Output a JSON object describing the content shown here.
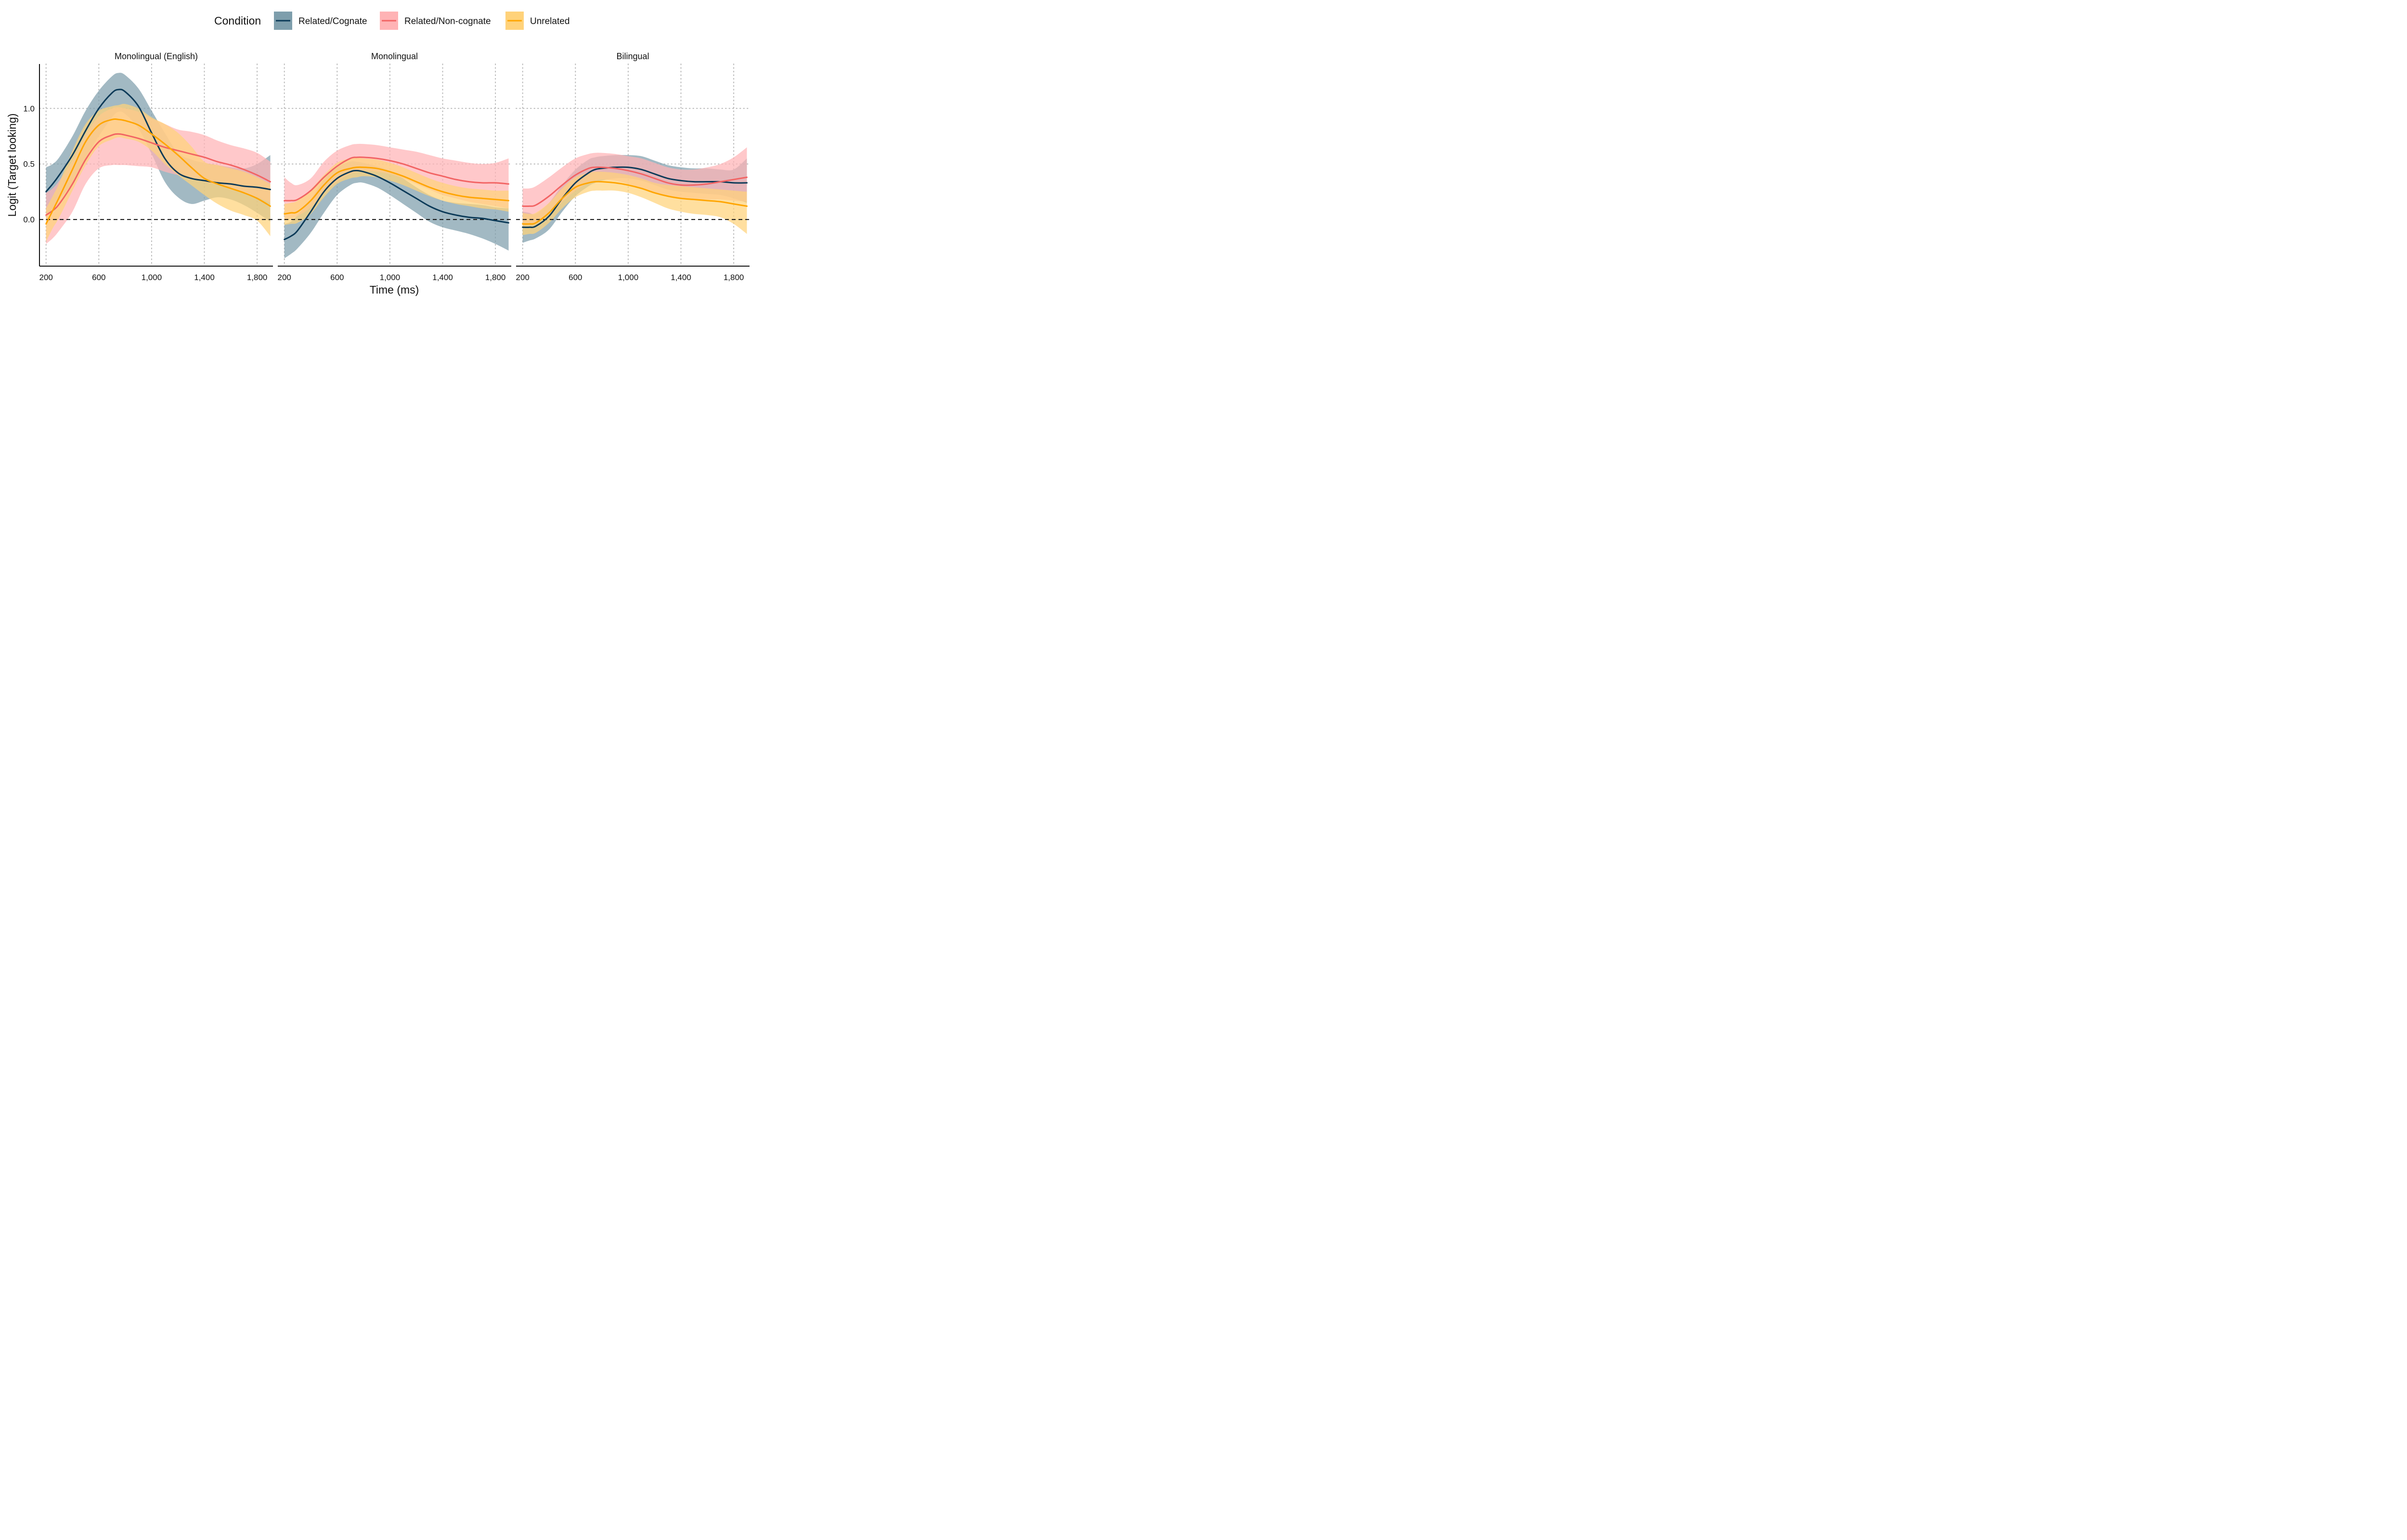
{
  "chart_data": {
    "type": "line",
    "xlabel": "Time (ms)",
    "ylabel": "Logit (Target looking)",
    "xlim": [
      150,
      1920
    ],
    "ylim": [
      -0.42,
      1.4
    ],
    "x_ticks": [
      200,
      600,
      1000,
      1400,
      1800
    ],
    "x_tick_labels": [
      "200",
      "600",
      "1,000",
      "1,400",
      "1,800"
    ],
    "y_ticks": [
      0,
      0.5,
      1
    ],
    "y_tick_labels": [
      "0.0",
      "0.5",
      "1.0"
    ],
    "grid": "dotted at ticks",
    "reference_line": {
      "y": 0,
      "style": "dashed"
    },
    "legend": {
      "title": "Condition",
      "position": "top",
      "entries": [
        {
          "name": "Related/Cognate",
          "line_color": "#0b3a58",
          "band_color": "#7e9eac"
        },
        {
          "name": "Related/Non-cognate",
          "line_color": "#f26464",
          "band_color": "#ffb3b5"
        },
        {
          "name": "Unrelated",
          "line_color": "#ffa500",
          "band_color": "#ffd27a"
        }
      ]
    },
    "x": [
      200,
      250,
      300,
      400,
      500,
      600,
      700,
      750,
      800,
      900,
      1000,
      1100,
      1200,
      1300,
      1400,
      1500,
      1600,
      1700,
      1800,
      1900
    ],
    "panels": [
      {
        "title": "Monolingual (English)",
        "series": [
          {
            "name": "Related/Cognate",
            "values": [
              0.25,
              0.32,
              0.4,
              0.58,
              0.8,
              1.0,
              1.14,
              1.17,
              1.15,
              1.02,
              0.78,
              0.55,
              0.42,
              0.37,
              0.35,
              0.33,
              0.32,
              0.3,
              0.29,
              0.27
            ],
            "lower": [
              0.02,
              0.1,
              0.18,
              0.33,
              0.55,
              0.75,
              0.92,
              0.97,
              0.95,
              0.82,
              0.59,
              0.34,
              0.2,
              0.14,
              0.17,
              0.2,
              0.18,
              0.13,
              0.06,
              -0.02
            ],
            "upper": [
              0.47,
              0.5,
              0.56,
              0.75,
              0.98,
              1.16,
              1.29,
              1.32,
              1.3,
              1.18,
              0.98,
              0.78,
              0.6,
              0.54,
              0.51,
              0.49,
              0.47,
              0.46,
              0.5,
              0.58
            ]
          },
          {
            "name": "Related/Non-cognate",
            "values": [
              0.04,
              0.08,
              0.14,
              0.32,
              0.54,
              0.7,
              0.76,
              0.77,
              0.76,
              0.73,
              0.69,
              0.65,
              0.62,
              0.59,
              0.56,
              0.52,
              0.49,
              0.45,
              0.4,
              0.34
            ],
            "lower": [
              -0.22,
              -0.17,
              -0.1,
              0.07,
              0.32,
              0.46,
              0.49,
              0.49,
              0.49,
              0.48,
              0.47,
              0.43,
              0.4,
              0.37,
              0.34,
              0.31,
              0.27,
              0.24,
              0.2,
              0.15
            ],
            "upper": [
              0.24,
              0.28,
              0.35,
              0.53,
              0.76,
              0.93,
              1.0,
              1.01,
              1.0,
              0.97,
              0.91,
              0.86,
              0.81,
              0.79,
              0.76,
              0.71,
              0.67,
              0.64,
              0.6,
              0.52
            ]
          },
          {
            "name": "Unrelated",
            "values": [
              -0.04,
              0.08,
              0.2,
              0.45,
              0.7,
              0.85,
              0.9,
              0.9,
              0.89,
              0.85,
              0.77,
              0.68,
              0.58,
              0.47,
              0.37,
              0.32,
              0.28,
              0.24,
              0.19,
              0.12
            ],
            "lower": [
              -0.2,
              -0.08,
              0.02,
              0.26,
              0.49,
              0.66,
              0.72,
              0.74,
              0.73,
              0.7,
              0.62,
              0.5,
              0.4,
              0.31,
              0.22,
              0.14,
              0.08,
              0.04,
              -0.01,
              -0.15
            ],
            "upper": [
              0.1,
              0.21,
              0.33,
              0.62,
              0.86,
              0.98,
              1.02,
              1.03,
              1.04,
              1.0,
              0.92,
              0.86,
              0.78,
              0.66,
              0.52,
              0.49,
              0.46,
              0.43,
              0.38,
              0.32
            ]
          }
        ]
      },
      {
        "title": "Monolingual",
        "series": [
          {
            "name": "Related/Cognate",
            "values": [
              -0.18,
              -0.15,
              -0.1,
              0.07,
              0.25,
              0.37,
              0.43,
              0.44,
              0.43,
              0.39,
              0.33,
              0.26,
              0.19,
              0.12,
              0.07,
              0.04,
              0.02,
              0.01,
              -0.01,
              -0.03
            ],
            "lower": [
              -0.35,
              -0.31,
              -0.26,
              -0.12,
              0.06,
              0.22,
              0.31,
              0.33,
              0.33,
              0.29,
              0.22,
              0.14,
              0.06,
              -0.02,
              -0.07,
              -0.1,
              -0.13,
              -0.17,
              -0.22,
              -0.28
            ],
            "upper": [
              -0.04,
              -0.02,
              0.04,
              0.18,
              0.36,
              0.47,
              0.52,
              0.52,
              0.51,
              0.48,
              0.44,
              0.37,
              0.29,
              0.22,
              0.17,
              0.15,
              0.14,
              0.13,
              0.11,
              0.1
            ]
          },
          {
            "name": "Related/Non-cognate",
            "values": [
              0.17,
              0.17,
              0.18,
              0.26,
              0.38,
              0.48,
              0.55,
              0.56,
              0.56,
              0.55,
              0.53,
              0.5,
              0.46,
              0.42,
              0.39,
              0.36,
              0.34,
              0.33,
              0.33,
              0.32
            ],
            "lower": [
              0.0,
              0.01,
              0.03,
              0.11,
              0.24,
              0.34,
              0.41,
              0.43,
              0.44,
              0.43,
              0.41,
              0.37,
              0.32,
              0.27,
              0.22,
              0.19,
              0.16,
              0.14,
              0.12,
              0.1
            ],
            "upper": [
              0.38,
              0.33,
              0.31,
              0.37,
              0.52,
              0.62,
              0.67,
              0.68,
              0.68,
              0.67,
              0.65,
              0.63,
              0.61,
              0.58,
              0.55,
              0.53,
              0.51,
              0.5,
              0.51,
              0.55
            ]
          },
          {
            "name": "Unrelated",
            "values": [
              0.05,
              0.06,
              0.07,
              0.17,
              0.31,
              0.42,
              0.46,
              0.47,
              0.47,
              0.46,
              0.43,
              0.39,
              0.34,
              0.29,
              0.25,
              0.22,
              0.2,
              0.19,
              0.18,
              0.17
            ],
            "lower": [
              -0.05,
              -0.04,
              -0.03,
              0.05,
              0.2,
              0.32,
              0.37,
              0.38,
              0.39,
              0.38,
              0.35,
              0.31,
              0.26,
              0.21,
              0.17,
              0.14,
              0.12,
              0.1,
              0.09,
              0.07
            ],
            "upper": [
              0.14,
              0.15,
              0.17,
              0.27,
              0.4,
              0.51,
              0.55,
              0.56,
              0.55,
              0.54,
              0.51,
              0.47,
              0.42,
              0.37,
              0.33,
              0.3,
              0.28,
              0.27,
              0.26,
              0.26
            ]
          }
        ]
      },
      {
        "title": "Bilingual",
        "series": [
          {
            "name": "Related/Cognate",
            "values": [
              -0.07,
              -0.07,
              -0.06,
              0.03,
              0.19,
              0.33,
              0.42,
              0.45,
              0.46,
              0.47,
              0.47,
              0.45,
              0.41,
              0.37,
              0.35,
              0.34,
              0.34,
              0.34,
              0.33,
              0.33
            ],
            "lower": [
              -0.21,
              -0.19,
              -0.17,
              -0.09,
              0.07,
              0.21,
              0.3,
              0.33,
              0.35,
              0.37,
              0.37,
              0.35,
              0.31,
              0.27,
              0.25,
              0.24,
              0.23,
              0.22,
              0.19,
              0.15
            ],
            "upper": [
              0.07,
              0.06,
              0.05,
              0.15,
              0.31,
              0.45,
              0.54,
              0.56,
              0.57,
              0.58,
              0.58,
              0.57,
              0.53,
              0.49,
              0.47,
              0.46,
              0.46,
              0.45,
              0.45,
              0.55
            ]
          },
          {
            "name": "Related/Non-cognate",
            "values": [
              0.12,
              0.12,
              0.13,
              0.21,
              0.31,
              0.4,
              0.46,
              0.47,
              0.47,
              0.46,
              0.44,
              0.41,
              0.37,
              0.33,
              0.31,
              0.31,
              0.32,
              0.34,
              0.36,
              0.38
            ],
            "lower": [
              -0.05,
              -0.05,
              -0.03,
              0.05,
              0.16,
              0.26,
              0.33,
              0.35,
              0.36,
              0.35,
              0.32,
              0.28,
              0.24,
              0.21,
              0.19,
              0.18,
              0.18,
              0.18,
              0.17,
              0.16
            ],
            "upper": [
              0.28,
              0.28,
              0.3,
              0.38,
              0.47,
              0.55,
              0.59,
              0.6,
              0.6,
              0.59,
              0.57,
              0.55,
              0.51,
              0.47,
              0.45,
              0.45,
              0.47,
              0.5,
              0.56,
              0.65
            ]
          },
          {
            "name": "Unrelated",
            "values": [
              -0.04,
              -0.04,
              -0.03,
              0.06,
              0.19,
              0.29,
              0.33,
              0.34,
              0.34,
              0.33,
              0.31,
              0.28,
              0.24,
              0.21,
              0.19,
              0.18,
              0.17,
              0.16,
              0.14,
              0.12
            ],
            "lower": [
              -0.14,
              -0.13,
              -0.12,
              -0.03,
              0.1,
              0.2,
              0.25,
              0.26,
              0.26,
              0.26,
              0.24,
              0.2,
              0.15,
              0.1,
              0.07,
              0.05,
              0.04,
              0.02,
              -0.04,
              -0.13
            ],
            "upper": [
              0.06,
              0.05,
              0.06,
              0.15,
              0.28,
              0.38,
              0.42,
              0.43,
              0.43,
              0.42,
              0.4,
              0.37,
              0.33,
              0.31,
              0.3,
              0.29,
              0.28,
              0.27,
              0.26,
              0.25
            ]
          }
        ]
      }
    ]
  }
}
